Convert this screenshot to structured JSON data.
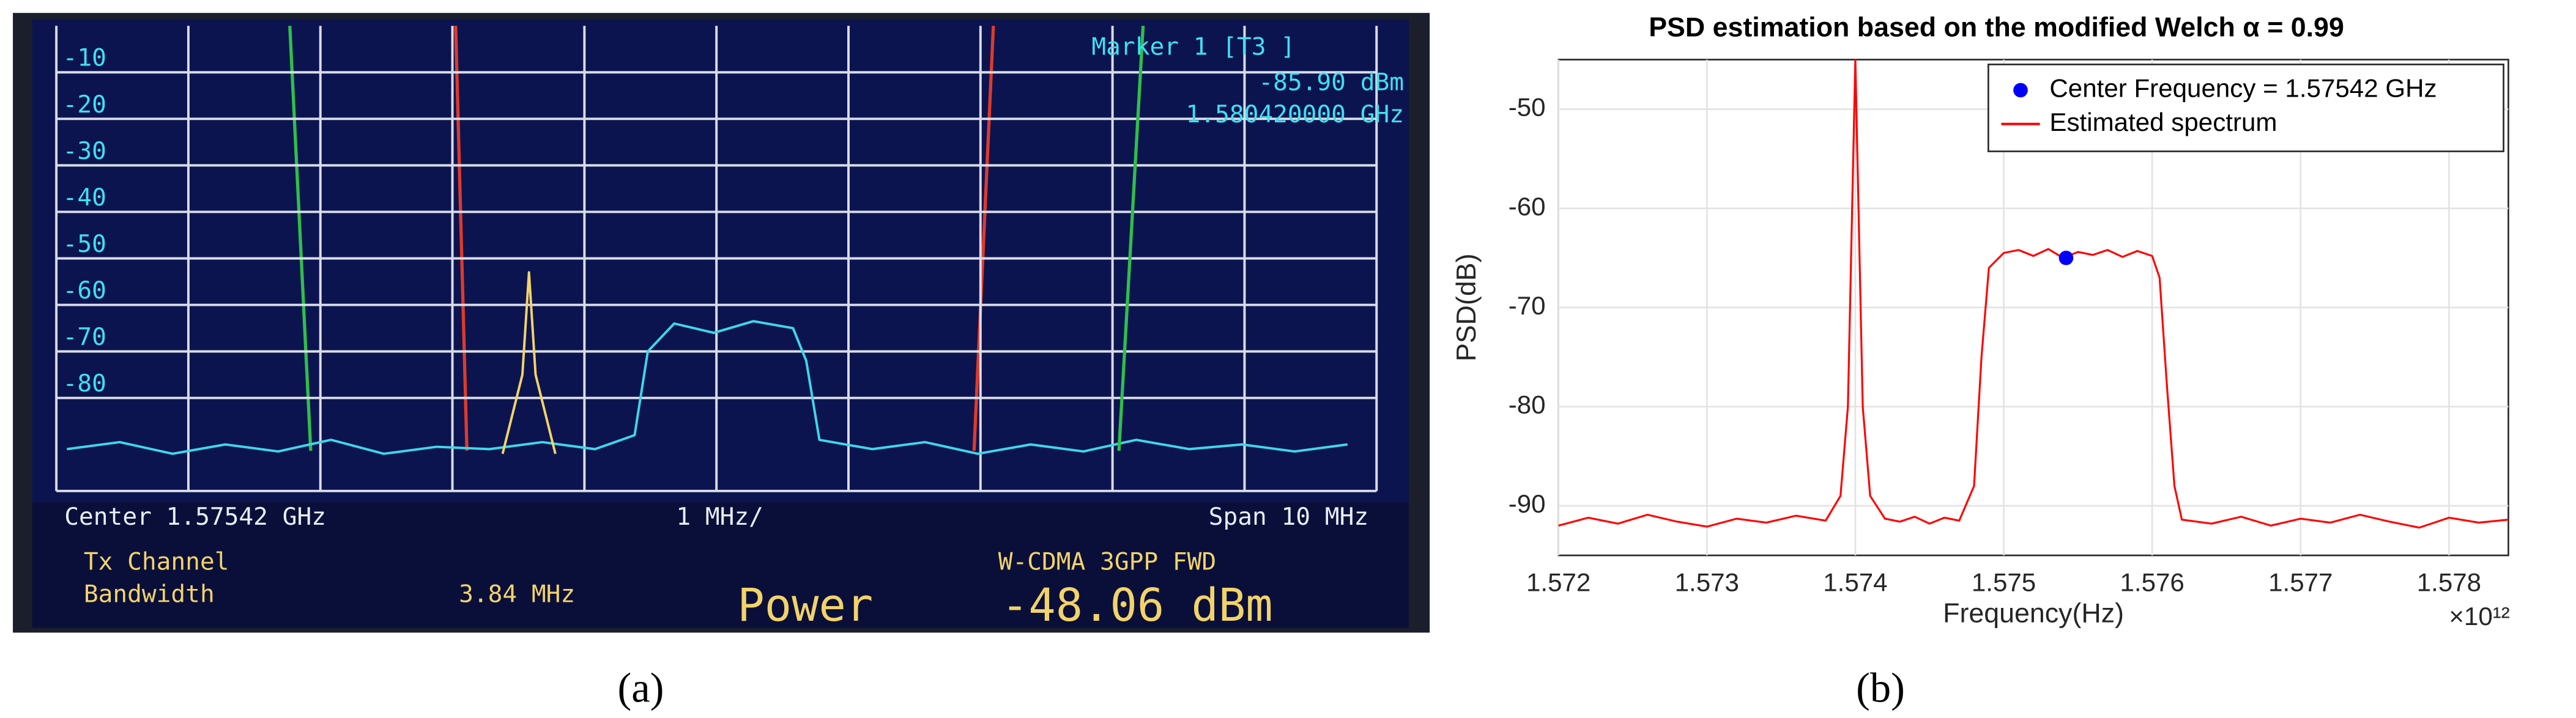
{
  "chart_data": [
    {
      "type": "line",
      "ylim": [
        -100,
        0
      ],
      "yticks": [
        -10,
        -20,
        -30,
        -40,
        -50,
        -60,
        -70,
        -80
      ],
      "xlim": [
        1.57042,
        1.58042
      ],
      "grid": true,
      "marker_label": "Marker 1 [T3 ]",
      "marker_level": "-85.90 dBm",
      "marker_freq": "1.580420000 GHz",
      "center_label": "Center 1.57542 GHz",
      "div_label": "1 MHz/",
      "span_label": "Span 10 MHz",
      "channel_label": "Tx Channel",
      "bandwidth_label": "Bandwidth",
      "bandwidth_value": "3.84 MHz",
      "power_label": "Power",
      "standard_label": "W-CDMA 3GPP FWD",
      "power_value": "-48.06 dBm",
      "caption": "(a)",
      "series": [
        {
          "color": "#3fd6e8",
          "x": [
            1.5705,
            1.5709,
            1.5713,
            1.5717,
            1.5721,
            1.5725,
            1.5729,
            1.5733,
            1.5737,
            1.5741,
            1.5745,
            1.5748,
            1.5749,
            1.5751,
            1.5754,
            1.5757,
            1.576,
            1.5761,
            1.5762,
            1.5766,
            1.577,
            1.5774,
            1.5778,
            1.5782,
            1.5786,
            1.579,
            1.5794,
            1.5798,
            1.5802
          ],
          "values": [
            -91,
            -89.5,
            -92,
            -90,
            -91.5,
            -89,
            -92,
            -90.5,
            -91,
            -89.5,
            -91,
            -88,
            -70,
            -64,
            -66,
            -63.5,
            -65,
            -72,
            -89,
            -91,
            -89.5,
            -92,
            -90,
            -91.5,
            -89,
            -91,
            -90,
            -91.5,
            -90
          ]
        },
        {
          "color": "#f2d36a",
          "x": [
            1.5738,
            1.57395,
            1.574,
            1.57405,
            1.5742
          ],
          "values": [
            -92,
            -75,
            -53,
            -75,
            -92
          ]
        }
      ]
    },
    {
      "type": "line",
      "title": "PSD estimation based on the modified Welch  α = 0.99",
      "xlabel": "Frequency(Hz)",
      "ylabel": "PSD(dB)",
      "x_multiplier": "×10¹²",
      "xlim": [
        1.572,
        1.5784
      ],
      "xticks": [
        1.572,
        1.573,
        1.574,
        1.575,
        1.576,
        1.577,
        1.578
      ],
      "ylim": [
        -95,
        -45
      ],
      "yticks": [
        -50,
        -60,
        -70,
        -80,
        -90
      ],
      "grid": true,
      "legend": "upper right",
      "caption": "(b)",
      "series": [
        {
          "name": "Center Frequency = 1.57542 GHz",
          "color": "#0000ff",
          "type": "scatter",
          "x": [
            1.57542
          ],
          "values": [
            -65
          ]
        },
        {
          "name": "Estimated spectrum",
          "color": "#ff0000",
          "x": [
            1.572,
            1.5722,
            1.5724,
            1.5726,
            1.5728,
            1.573,
            1.5732,
            1.5734,
            1.5736,
            1.5738,
            1.5739,
            1.57395,
            1.574,
            1.57405,
            1.5741,
            1.5742,
            1.5743,
            1.5744,
            1.5745,
            1.5746,
            1.5747,
            1.5748,
            1.57485,
            1.5749,
            1.575,
            1.5751,
            1.5752,
            1.5753,
            1.5754,
            1.5755,
            1.5756,
            1.5757,
            1.5758,
            1.5759,
            1.576,
            1.57605,
            1.5761,
            1.57615,
            1.5762,
            1.5764,
            1.5766,
            1.5768,
            1.577,
            1.5772,
            1.5774,
            1.5776,
            1.5778,
            1.578,
            1.5782,
            1.5784
          ],
          "values": [
            -92,
            -91.2,
            -91.8,
            -90.9,
            -91.6,
            -92.1,
            -91.3,
            -91.7,
            -91,
            -91.5,
            -89,
            -80,
            -45,
            -80,
            -89,
            -91.3,
            -91.6,
            -91.1,
            -91.8,
            -91.2,
            -91.5,
            -88,
            -75,
            -66,
            -64.5,
            -64.2,
            -64.8,
            -64.1,
            -65,
            -64.4,
            -64.7,
            -64.2,
            -64.9,
            -64.3,
            -64.8,
            -67,
            -78,
            -88,
            -91.4,
            -91.8,
            -91.1,
            -92,
            -91.3,
            -91.7,
            -90.9,
            -91.6,
            -92.2,
            -91.2,
            -91.7,
            -91.4
          ]
        }
      ]
    }
  ]
}
